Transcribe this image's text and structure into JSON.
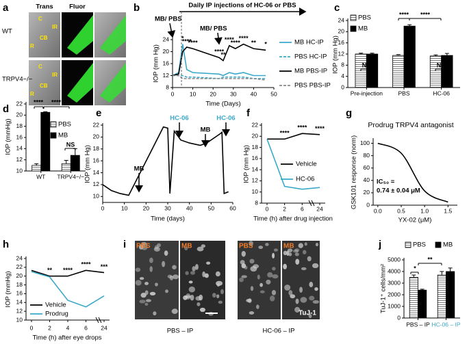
{
  "image_panels": [
    {
      "panel": "a",
      "column_headers": [
        "Trans",
        "Fluor"
      ],
      "rows": [
        {
          "label": "WT",
          "regions": [
            "C",
            "IR",
            "CB",
            "R"
          ]
        },
        {
          "label": "TRPV4−/−",
          "regions": [
            "C",
            "IR",
            "CB",
            "R"
          ]
        }
      ]
    },
    {
      "panel": "i",
      "tiles": [
        "PBS",
        "MB",
        "PBS",
        "MB"
      ],
      "stain": "TuJ-1",
      "groups": [
        {
          "text": "PBS – IP",
          "color": "#000000"
        },
        {
          "text": "HC-06 – IP",
          "color": "#3aa9c9"
        }
      ]
    }
  ],
  "chart_data": [
    {
      "panel": "b",
      "type": "line",
      "xlabel": "Time (Days)",
      "ylabel": "IOP (mm Hg)",
      "annotations": [
        "Daily IP injections of HC-06 or PBS",
        "MB/ PBS",
        "MB/ PBS"
      ],
      "x": [
        0,
        3,
        5,
        7,
        10,
        23,
        25,
        28,
        31,
        35,
        40,
        46
      ],
      "xlim": [
        0,
        50
      ],
      "xticks": [
        0,
        10,
        20,
        30,
        40,
        50
      ],
      "ylim": [
        8,
        24
      ],
      "yticks": [
        8,
        12,
        16,
        20,
        24
      ],
      "series": [
        {
          "name": "MB HC-IP",
          "color": "#3aa9c9",
          "dash": false,
          "values": [
            12,
            13,
            22.5,
            14,
            13,
            12.5,
            12,
            13,
            12.5,
            13,
            12,
            12
          ]
        },
        {
          "name": "PBS HC-IP",
          "color": "#3aa9c9",
          "dash": true,
          "values": [
            12,
            12,
            12,
            11.5,
            11.5,
            11,
            11.5,
            11.5,
            11.5,
            11.5,
            11,
            11
          ]
        },
        {
          "name": "MB PBS-IP",
          "color": "#000000",
          "dash": false,
          "values": [
            12,
            12.5,
            20,
            21.5,
            21,
            18,
            17,
            22,
            21,
            22.5,
            21,
            20.5
          ]
        },
        {
          "name": "PBS PBS-IP",
          "color": "#888888",
          "dash": true,
          "values": [
            12,
            12,
            11,
            11,
            11,
            11,
            11,
            11,
            11,
            11,
            11,
            10.5
          ]
        }
      ],
      "significance": [
        null,
        null,
        "*",
        "****",
        "****",
        "****",
        "**",
        "****",
        "****",
        "****",
        "**",
        "*"
      ]
    },
    {
      "panel": "c",
      "type": "bar",
      "ylabel": "IOP (mm Hg)",
      "categories": [
        "Pre-injection",
        "PBS",
        "HC-06"
      ],
      "ylim": [
        0,
        24
      ],
      "yticks": [
        0,
        4,
        8,
        12,
        16,
        20,
        24
      ],
      "series": [
        {
          "name": "PBS",
          "color": "#ffffff",
          "hatch": true,
          "values": [
            12,
            11.5,
            11.3
          ],
          "errors": [
            0.3,
            0.3,
            0.4
          ]
        },
        {
          "name": "MB",
          "color": "#000000",
          "hatch": false,
          "values": [
            12,
            22,
            11.5
          ],
          "errors": [
            0.3,
            0.5,
            0.7
          ]
        }
      ],
      "annotations": [
        "NS",
        "****",
        "****",
        "NS"
      ]
    },
    {
      "panel": "d",
      "type": "bar",
      "ylabel": "IOP (mmHg)",
      "categories": [
        "WT",
        "TRPV4−/−"
      ],
      "ylim": [
        10,
        22
      ],
      "yticks": [
        10,
        12,
        14,
        16,
        18,
        20,
        22
      ],
      "series": [
        {
          "name": "PBS",
          "color": "#ffffff",
          "hatch": true,
          "values": [
            11,
            11.3
          ],
          "errors": [
            0.3,
            0.6
          ]
        },
        {
          "name": "MB",
          "color": "#000000",
          "hatch": false,
          "values": [
            20.5,
            12.8
          ],
          "errors": [
            0.1,
            1.2
          ]
        }
      ],
      "annotations": [
        "****",
        "****",
        "NS"
      ]
    },
    {
      "panel": "e",
      "type": "line",
      "xlabel": "Time (days)",
      "ylabel": "IOP (mm Hg)",
      "x": [
        0,
        4,
        8,
        12,
        28,
        30,
        31,
        33,
        36,
        40,
        45,
        48,
        54,
        55,
        56,
        58
      ],
      "xlim": [
        0,
        60
      ],
      "xticks": [
        0,
        10,
        20,
        30,
        40,
        50,
        60
      ],
      "ylim": [
        9,
        22
      ],
      "yticks": [
        10,
        12,
        14,
        16,
        18,
        20,
        22
      ],
      "series": [
        {
          "name": null,
          "color": "#000000",
          "dash": false,
          "values": [
            12,
            11,
            10.5,
            10.2,
            21.7,
            21.5,
            10.5,
            21,
            19.5,
            19,
            18.6,
            19,
            20.5,
            20.8,
            10.5,
            10.8
          ]
        }
      ],
      "annotations": [
        {
          "text": "MB",
          "color": "#000000"
        },
        {
          "text": "HC-06",
          "color": "#3aa9c9"
        },
        {
          "text": "MB",
          "color": "#000000"
        },
        {
          "text": "HC-06",
          "color": "#3aa9c9"
        }
      ]
    },
    {
      "panel": "f",
      "type": "line",
      "xlabel": "Time (h) after drug injection",
      "ylabel": "IOP (mm Hg)",
      "categories": [
        "0",
        "2",
        "6",
        "24"
      ],
      "ylim": [
        8,
        22
      ],
      "yticks": [
        8,
        10,
        12,
        14,
        16,
        18,
        20,
        22
      ],
      "series": [
        {
          "name": "Vehicle",
          "color": "#000000",
          "dash": false,
          "values": [
            19.5,
            19.5,
            20.5,
            20.3
          ]
        },
        {
          "name": "HC-06",
          "color": "#3aa9c9",
          "dash": false,
          "values": [
            19.5,
            11,
            10.5,
            10.8
          ]
        }
      ],
      "significance": [
        null,
        "****",
        "****",
        "****"
      ]
    },
    {
      "panel": "g",
      "type": "line",
      "smooth": true,
      "title": "Prodrug TRPV4 antagonist",
      "xlabel": "YX-02 (μM)",
      "ylabel": "GSK101 response (norm)",
      "annotations": [
        "IC₅₀ =",
        "0.74 ± 0.04 μM"
      ],
      "x": [
        0,
        0.5,
        1,
        1.5
      ],
      "xlim": [
        -0.1,
        1.7
      ],
      "xticks": [
        {
          "value": 0,
          "label": "0.0"
        },
        0.5,
        {
          "value": 1,
          "label": "1.0"
        },
        1.5
      ],
      "ylim": [
        0,
        105
      ],
      "yticks": [
        0,
        20,
        40,
        60,
        80,
        100
      ],
      "series": [
        {
          "name": null,
          "color": "#000000",
          "dash": false,
          "values": [
            100,
            84,
            23,
            5
          ]
        }
      ]
    },
    {
      "panel": "h",
      "type": "line",
      "xlabel": "Time (h) after eye drops",
      "ylabel": "IOP (mmHg)",
      "categories": [
        "0",
        "2",
        "4",
        "6",
        "24"
      ],
      "ylim": [
        10,
        24
      ],
      "yticks": [
        10,
        12,
        14,
        16,
        18,
        20,
        22,
        24
      ],
      "series": [
        {
          "name": "Vehicle",
          "color": "#000000",
          "dash": false,
          "values": [
            21.3,
            20,
            20,
            21.3,
            20.8
          ]
        },
        {
          "name": "Prodrug",
          "color": "#3aa9c9",
          "dash": false,
          "values": [
            21,
            19.8,
            14.5,
            13,
            15.5
          ]
        }
      ],
      "significance": [
        null,
        "**",
        "****",
        "****",
        "***"
      ]
    },
    {
      "panel": "j",
      "type": "bar",
      "ylabel": "TuJ-1⁺ cells/mm²",
      "categories": [
        "PBS – IP",
        "HC-06 – IP"
      ],
      "category_colors": [
        "#000000",
        "#3aa9c9"
      ],
      "ylim": [
        0,
        5000
      ],
      "yticks": [
        0,
        1000,
        2000,
        3000,
        4000,
        5000
      ],
      "series": [
        {
          "name": "PBS",
          "color": "#ffffff",
          "hatch": true,
          "values": [
            3500,
            3700
          ],
          "errors": [
            200,
            300
          ]
        },
        {
          "name": "MB",
          "color": "#000000",
          "hatch": false,
          "values": [
            2400,
            4000
          ],
          "errors": [
            80,
            300
          ]
        }
      ],
      "annotations": [
        "*",
        "**"
      ]
    }
  ]
}
